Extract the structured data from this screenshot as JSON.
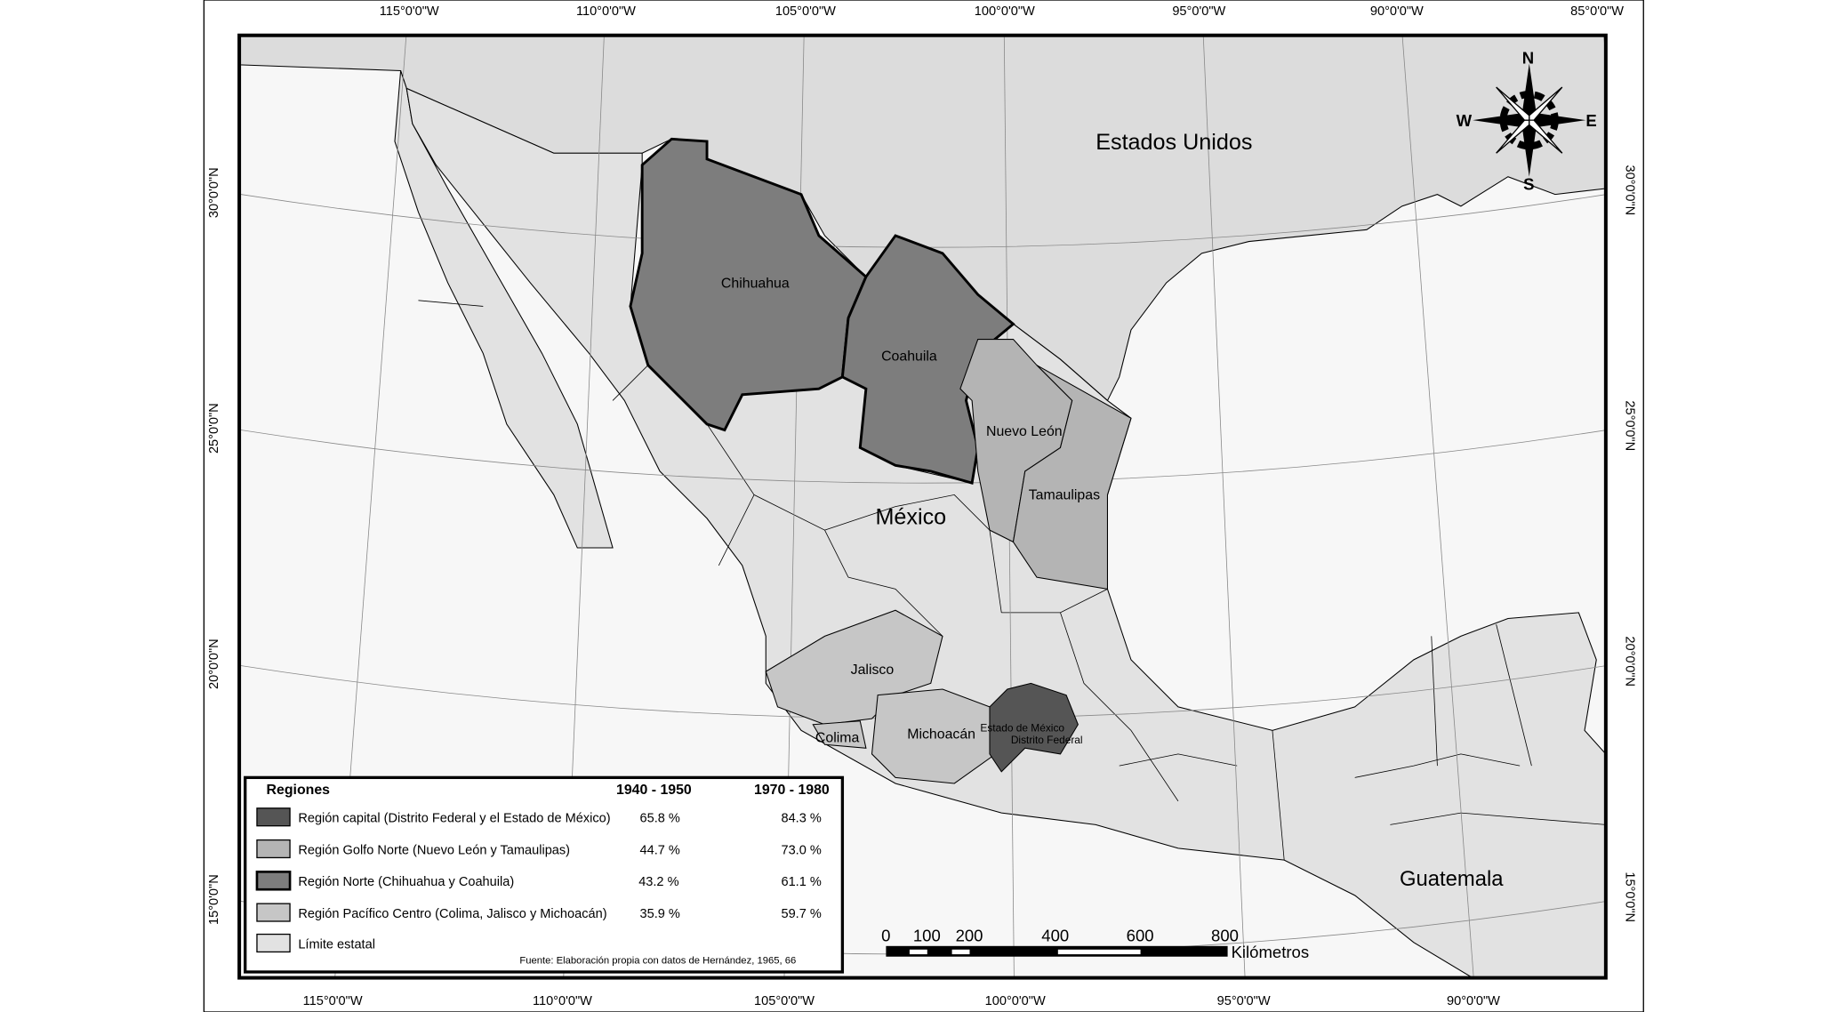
{
  "map": {
    "labels": {
      "usa": "Estados Unidos",
      "mexico": "México",
      "guatemala": "Guatemala",
      "chihuahua": "Chihuahua",
      "coahuila": "Coahuila",
      "nuevo_leon": "Nuevo León",
      "tamaulipas": "Tamaulipas",
      "jalisco": "Jalisco",
      "colima": "Colima",
      "michoacan": "Michoacán",
      "estado_mexico": "Estado de México",
      "distrito_federal": "Distrito Federal"
    },
    "lon_top": [
      "115°0'0\"W",
      "110°0'0\"W",
      "105°0'0\"W",
      "100°0'0\"W",
      "95°0'0\"W",
      "90°0'0\"W",
      "85°0'0\"W"
    ],
    "lon_bottom": [
      "115°0'0\"W",
      "110°0'0\"W",
      "105°0'0\"W",
      "100°0'0\"W",
      "95°0'0\"W",
      "90°0'0\"W"
    ],
    "lat": [
      "30°0'0\"N",
      "25°0'0\"N",
      "20°0'0\"N",
      "15°0'0\"N"
    ],
    "compass": {
      "n": "N",
      "s": "S",
      "e": "E",
      "w": "W"
    },
    "scale": {
      "ticks": [
        "0",
        "100",
        "200",
        "400",
        "600",
        "800"
      ],
      "unit": "Kilómetros"
    },
    "colors": {
      "capital": "#555555",
      "golfo_norte": "#b4b4b4",
      "norte": "#7d7d7d",
      "pacifico": "#c6c6c6",
      "limite": "#e2e2e2",
      "usa": "#dcdcdc",
      "ocean": "#f7f7f7"
    }
  },
  "legend": {
    "title": "Regiones",
    "col1": "1940 - 1950",
    "col2": "1970 - 1980",
    "rows": [
      {
        "label": "Región capital (Distrito Federal y el Estado de México)",
        "v1": "65.8 %",
        "v2": "84.3 %"
      },
      {
        "label": "Región Golfo Norte  (Nuevo León y Tamaulipas)",
        "v1": "44.7 %",
        "v2": "73.0 %"
      },
      {
        "label": "Región Norte (Chihuahua y Coahuila)",
        "v1": "43.2 %",
        "v2": "61.1  %"
      },
      {
        "label": "Región Pacífico Centro (Colima, Jalisco y Michoacán)",
        "v1": "35.9 %",
        "v2": "59.7 %"
      },
      {
        "label": "Límite estatal",
        "v1": "",
        "v2": ""
      }
    ],
    "source": "Fuente: Elaboración propia con datos de Hernández, 1965, 66"
  }
}
